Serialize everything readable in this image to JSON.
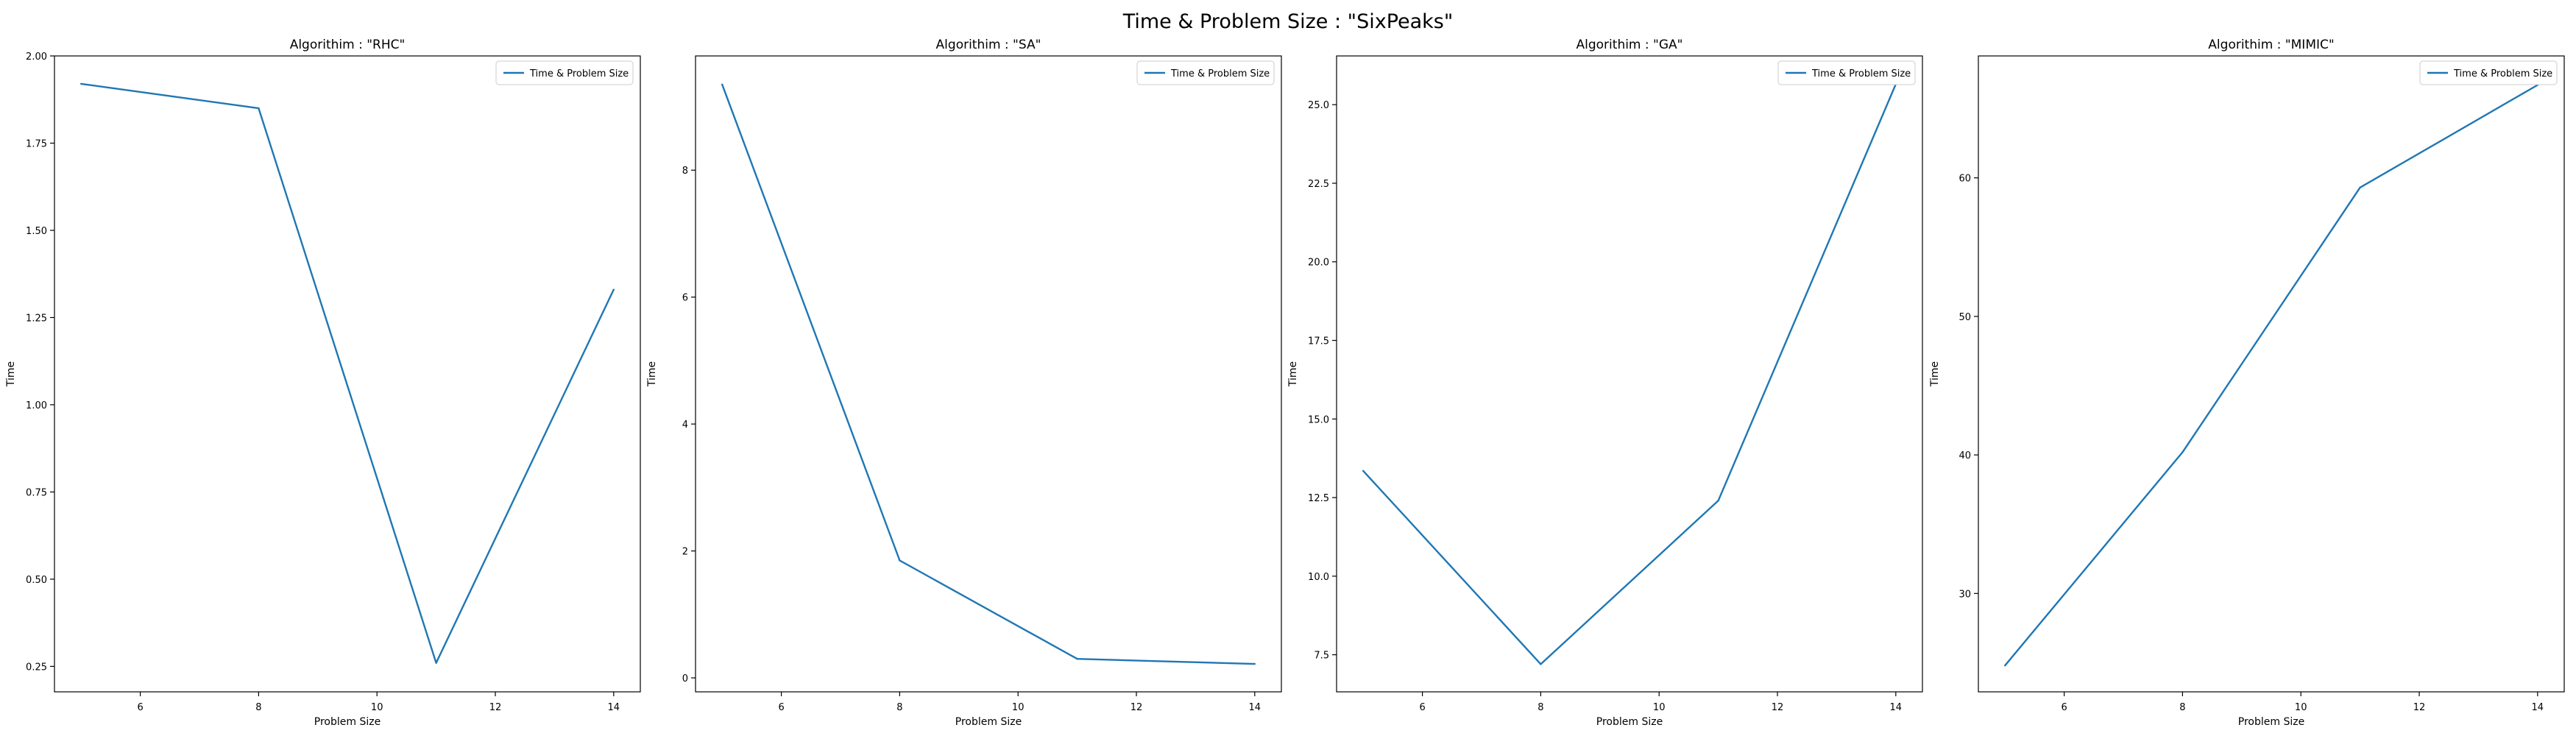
{
  "figure": {
    "title": "Time & Problem Size : \"SixPeaks\""
  },
  "style": {
    "line_color": "#1f77b4",
    "axis_color": "#000000",
    "background": "#ffffff"
  },
  "chart_data": [
    {
      "type": "line",
      "title": "Algorithim : \"RHC\"",
      "xlabel": "Problem Size",
      "ylabel": "Time",
      "x": [
        5,
        8,
        11,
        14
      ],
      "series": [
        {
          "name": "Time & Problem Size",
          "values": [
            1.92,
            1.85,
            0.26,
            1.33
          ]
        }
      ],
      "xlim": [
        4.55,
        14.45
      ],
      "ylim": [
        0.177,
        2.0
      ],
      "xticks": [
        6,
        8,
        10,
        12,
        14
      ],
      "yticks": [
        0.25,
        0.5,
        0.75,
        1.0,
        1.25,
        1.5,
        1.75,
        2.0
      ],
      "yticklabels": [
        "0.25",
        "0.50",
        "0.75",
        "1.00",
        "1.25",
        "1.50",
        "1.75",
        "2.00"
      ],
      "grid": false,
      "legend": "top-right"
    },
    {
      "type": "line",
      "title": "Algorithim : \"SA\"",
      "xlabel": "Problem Size",
      "ylabel": "Time",
      "x": [
        5,
        8,
        11,
        14
      ],
      "series": [
        {
          "name": "Time & Problem Size",
          "values": [
            9.35,
            1.85,
            0.3,
            0.22
          ]
        }
      ],
      "xlim": [
        4.55,
        14.45
      ],
      "ylim": [
        -0.22,
        9.8
      ],
      "xticks": [
        6,
        8,
        10,
        12,
        14
      ],
      "yticks": [
        0,
        2,
        4,
        6,
        8
      ],
      "yticklabels": [
        "0",
        "2",
        "4",
        "6",
        "8"
      ],
      "grid": false,
      "legend": "top-right"
    },
    {
      "type": "line",
      "title": "Algorithim : \"GA\"",
      "xlabel": "Problem Size",
      "ylabel": "Time",
      "x": [
        5,
        8,
        11,
        14
      ],
      "series": [
        {
          "name": "Time & Problem Size",
          "values": [
            13.35,
            7.2,
            12.4,
            25.65
          ]
        }
      ],
      "xlim": [
        4.55,
        14.45
      ],
      "ylim": [
        6.32,
        26.55
      ],
      "xticks": [
        6,
        8,
        10,
        12,
        14
      ],
      "yticks": [
        7.5,
        10.0,
        12.5,
        15.0,
        17.5,
        20.0,
        22.5,
        25.0
      ],
      "yticklabels": [
        "7.5",
        "10.0",
        "12.5",
        "15.0",
        "17.5",
        "20.0",
        "22.5",
        "25.0"
      ],
      "grid": false,
      "legend": "top-right"
    },
    {
      "type": "line",
      "title": "Algorithim : \"MIMIC\"",
      "xlabel": "Problem Size",
      "ylabel": "Time",
      "x": [
        5,
        8,
        11,
        14
      ],
      "series": [
        {
          "name": "Time & Problem Size",
          "values": [
            24.8,
            40.2,
            59.3,
            66.7
          ]
        }
      ],
      "xlim": [
        4.55,
        14.45
      ],
      "ylim": [
        22.9,
        68.8
      ],
      "xticks": [
        6,
        8,
        10,
        12,
        14
      ],
      "yticks": [
        30,
        40,
        50,
        60
      ],
      "yticklabels": [
        "30",
        "40",
        "50",
        "60"
      ],
      "grid": false,
      "legend": "top-right"
    }
  ]
}
